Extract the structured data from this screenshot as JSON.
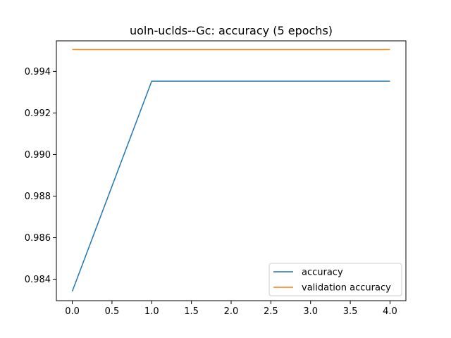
{
  "chart_data": {
    "type": "line",
    "title": "uoln-uclds--Gc: accuracy (5 epochs)",
    "xlabel": "",
    "ylabel": "",
    "xlim": [
      -0.2,
      4.2
    ],
    "ylim": [
      0.98297,
      0.99547
    ],
    "x_ticks": [
      0.0,
      0.5,
      1.0,
      1.5,
      2.0,
      2.5,
      3.0,
      3.5,
      4.0
    ],
    "x_tick_labels": [
      "0.0",
      "0.5",
      "1.0",
      "1.5",
      "2.0",
      "2.5",
      "3.0",
      "3.5",
      "4.0"
    ],
    "y_ticks": [
      0.984,
      0.986,
      0.988,
      0.99,
      0.992,
      0.994
    ],
    "y_tick_labels": [
      "0.984",
      "0.986",
      "0.988",
      "0.990",
      "0.992",
      "0.994"
    ],
    "x": [
      0,
      1,
      2,
      3,
      4
    ],
    "series": [
      {
        "name": "accuracy",
        "color": "#1f77b4",
        "values": [
          0.98342,
          0.99353,
          0.99353,
          0.99353,
          0.99353
        ]
      },
      {
        "name": "validation accuracy",
        "color": "#ff7f0e",
        "values": [
          0.99505,
          0.99505,
          0.99505,
          0.99505,
          0.99505
        ]
      }
    ],
    "grid": false,
    "legend_position": "lower-right"
  }
}
